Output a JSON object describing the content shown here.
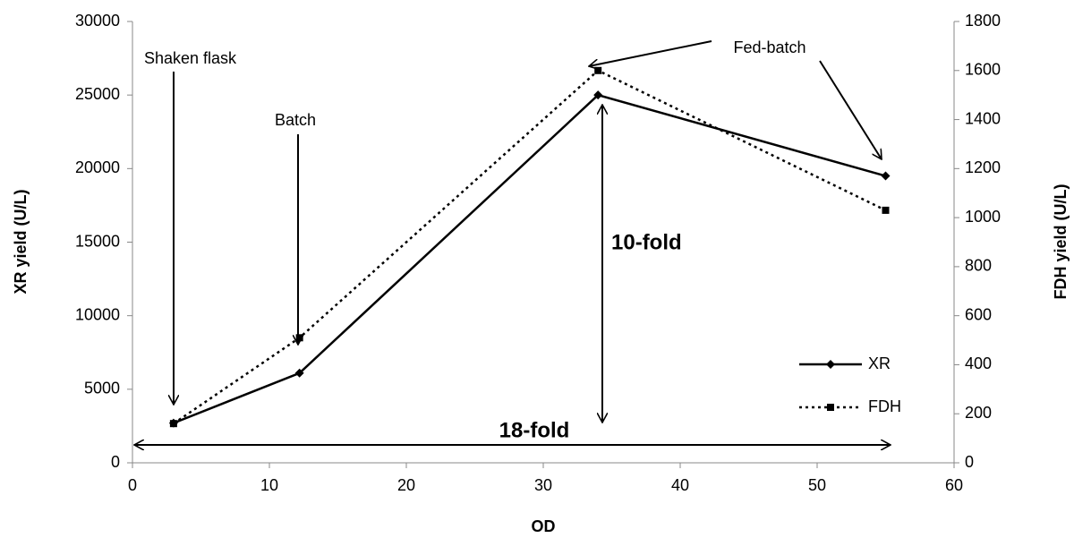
{
  "chart_data": {
    "type": "line",
    "x_label": "OD",
    "y_label": "XR yield (U/L)",
    "y2_label": "FDH yield (U/L)",
    "x": [
      3,
      12.2,
      34,
      55
    ],
    "series": [
      {
        "name": "XR",
        "color": "#000000",
        "line_style": "solid",
        "marker": "diamond",
        "values": [
          2700,
          6100,
          25000,
          19500
        ]
      },
      {
        "name": "FDH",
        "color": "#000000",
        "line_style": "dotted",
        "marker": "square",
        "axis": "y2",
        "values": [
          160,
          510,
          1600,
          1030
        ]
      }
    ],
    "xlim": [
      0,
      60
    ],
    "xticks": [
      0,
      10,
      20,
      30,
      40,
      50,
      60
    ],
    "ylim": [
      0,
      30000
    ],
    "yticks": [
      0,
      5000,
      10000,
      15000,
      20000,
      25000,
      30000
    ],
    "y2lim": [
      0,
      1800
    ],
    "y2ticks": [
      0,
      200,
      400,
      600,
      800,
      1000,
      1200,
      1400,
      1600,
      1800
    ],
    "grid": false,
    "legend": "lower right",
    "annotations": [
      "Shaken flask",
      "Batch",
      "Fed-batch",
      "10-fold",
      "18-fold"
    ]
  }
}
